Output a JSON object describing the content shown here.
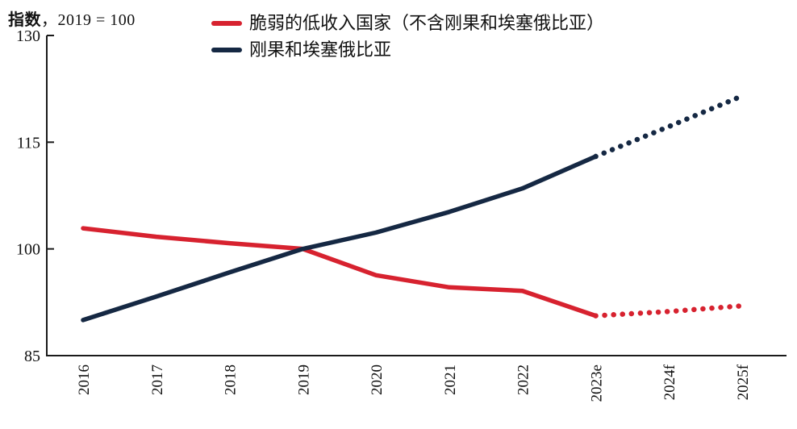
{
  "header": {
    "index_label_bold": "指数",
    "index_label_rest": "，2019 = 100"
  },
  "legend": [
    {
      "label": "脆弱的低收入国家（不含刚果和埃塞俄比亚）",
      "color": "#d7222f"
    },
    {
      "label": "刚果和埃塞俄比亚",
      "color": "#152843"
    }
  ],
  "chart_data": {
    "type": "line",
    "title": "",
    "ylabel": "指数，2019 = 100",
    "xlabel": "",
    "x_categories": [
      "2016",
      "2017",
      "2018",
      "2019",
      "2020",
      "2021",
      "2022",
      "2023e",
      "2024f",
      "2025f"
    ],
    "ylim": [
      85,
      130
    ],
    "yticks": [
      85,
      100,
      115,
      130
    ],
    "grid": false,
    "legend_position": "top",
    "series": [
      {
        "name": "脆弱的低收入国家（不含刚果和埃塞俄比亚）",
        "color": "#d7222f",
        "values": [
          102.9,
          101.7,
          100.8,
          100,
          96.3,
          94.6,
          94.1,
          90.6,
          91.2,
          92
        ],
        "solid_until_index": 7,
        "style_after": "dotted"
      },
      {
        "name": "刚果和埃塞俄比亚",
        "color": "#152843",
        "values": [
          90,
          93.3,
          96.7,
          100,
          102.3,
          105.2,
          108.5,
          113,
          117.2,
          121.5
        ],
        "solid_until_index": 7,
        "style_after": "dotted"
      }
    ]
  }
}
